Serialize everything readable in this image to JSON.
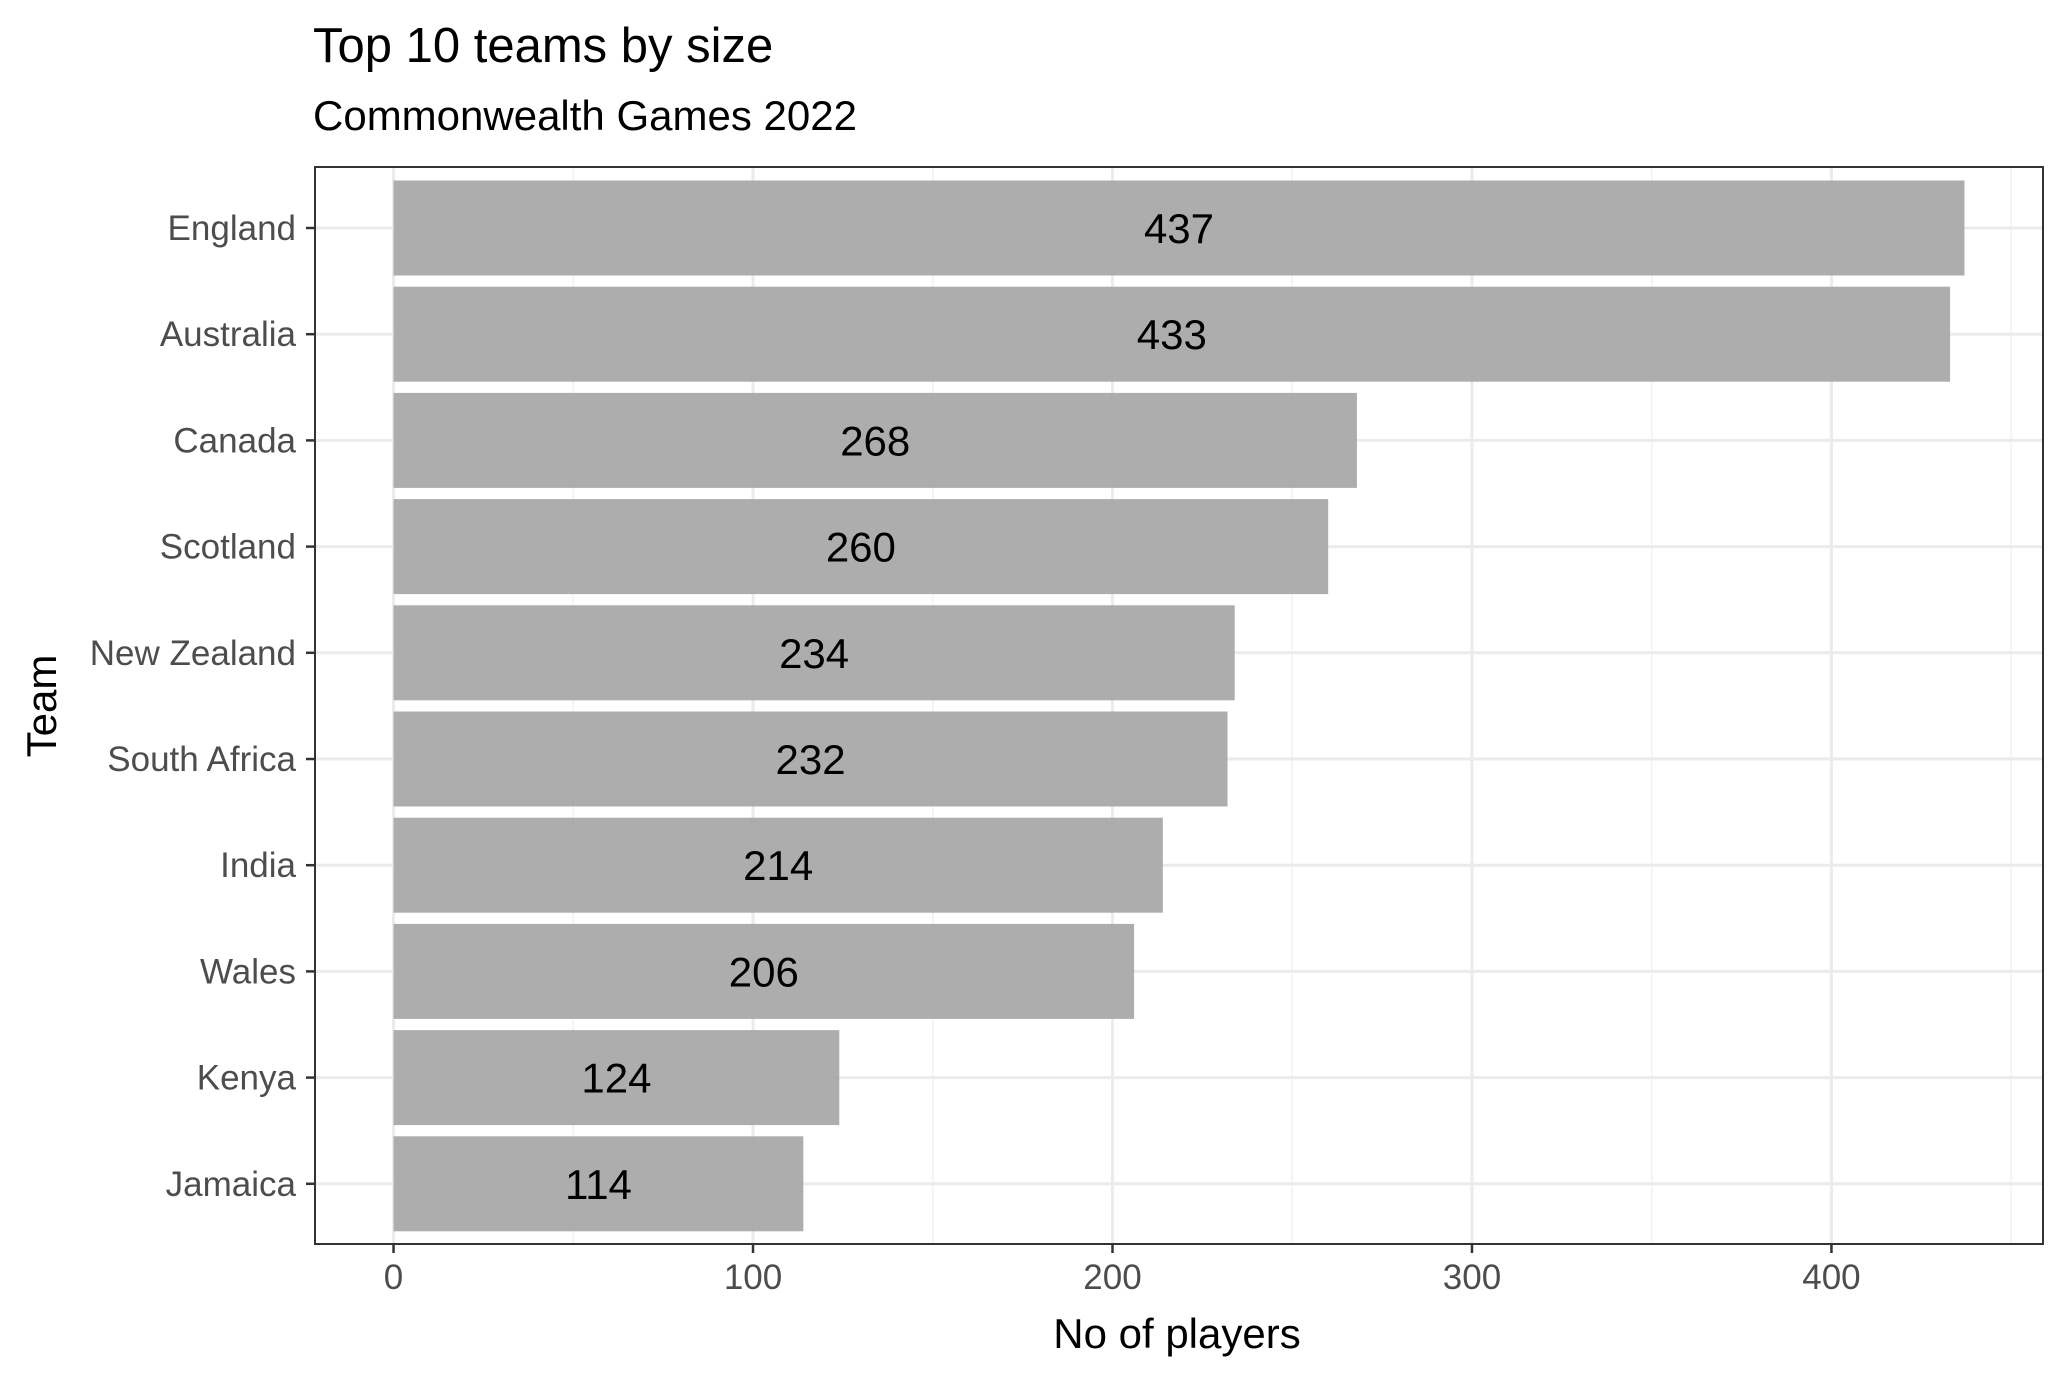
{
  "chart_data": {
    "type": "bar",
    "orientation": "horizontal",
    "title": "Top 10 teams by size",
    "subtitle": "Commonwealth Games 2022",
    "xlabel": "No of players",
    "ylabel": "Team",
    "categories": [
      "England",
      "Australia",
      "Canada",
      "Scotland",
      "New Zealand",
      "South Africa",
      "India",
      "Wales",
      "Kenya",
      "Jamaica"
    ],
    "values": [
      437,
      433,
      268,
      260,
      234,
      232,
      214,
      206,
      124,
      114
    ],
    "data_labels": [
      "437",
      "433",
      "268",
      "260",
      "234",
      "232",
      "214",
      "206",
      "124",
      "114"
    ],
    "xlim": [
      -21.85,
      458.85
    ],
    "x_ticks": [
      0,
      100,
      200,
      300,
      400
    ],
    "x_tick_labels": [
      "0",
      "100",
      "200",
      "300",
      "400"
    ],
    "grid": true,
    "legend": "none",
    "colors": {
      "bar": "#a6a6a6",
      "bar_opacity": 0.92,
      "grid_major": "#ebebeb",
      "grid_minor": "#f2f2f2",
      "panel_border": "#333333",
      "tick": "#333333",
      "tick_label": "#4d4d4d"
    }
  }
}
